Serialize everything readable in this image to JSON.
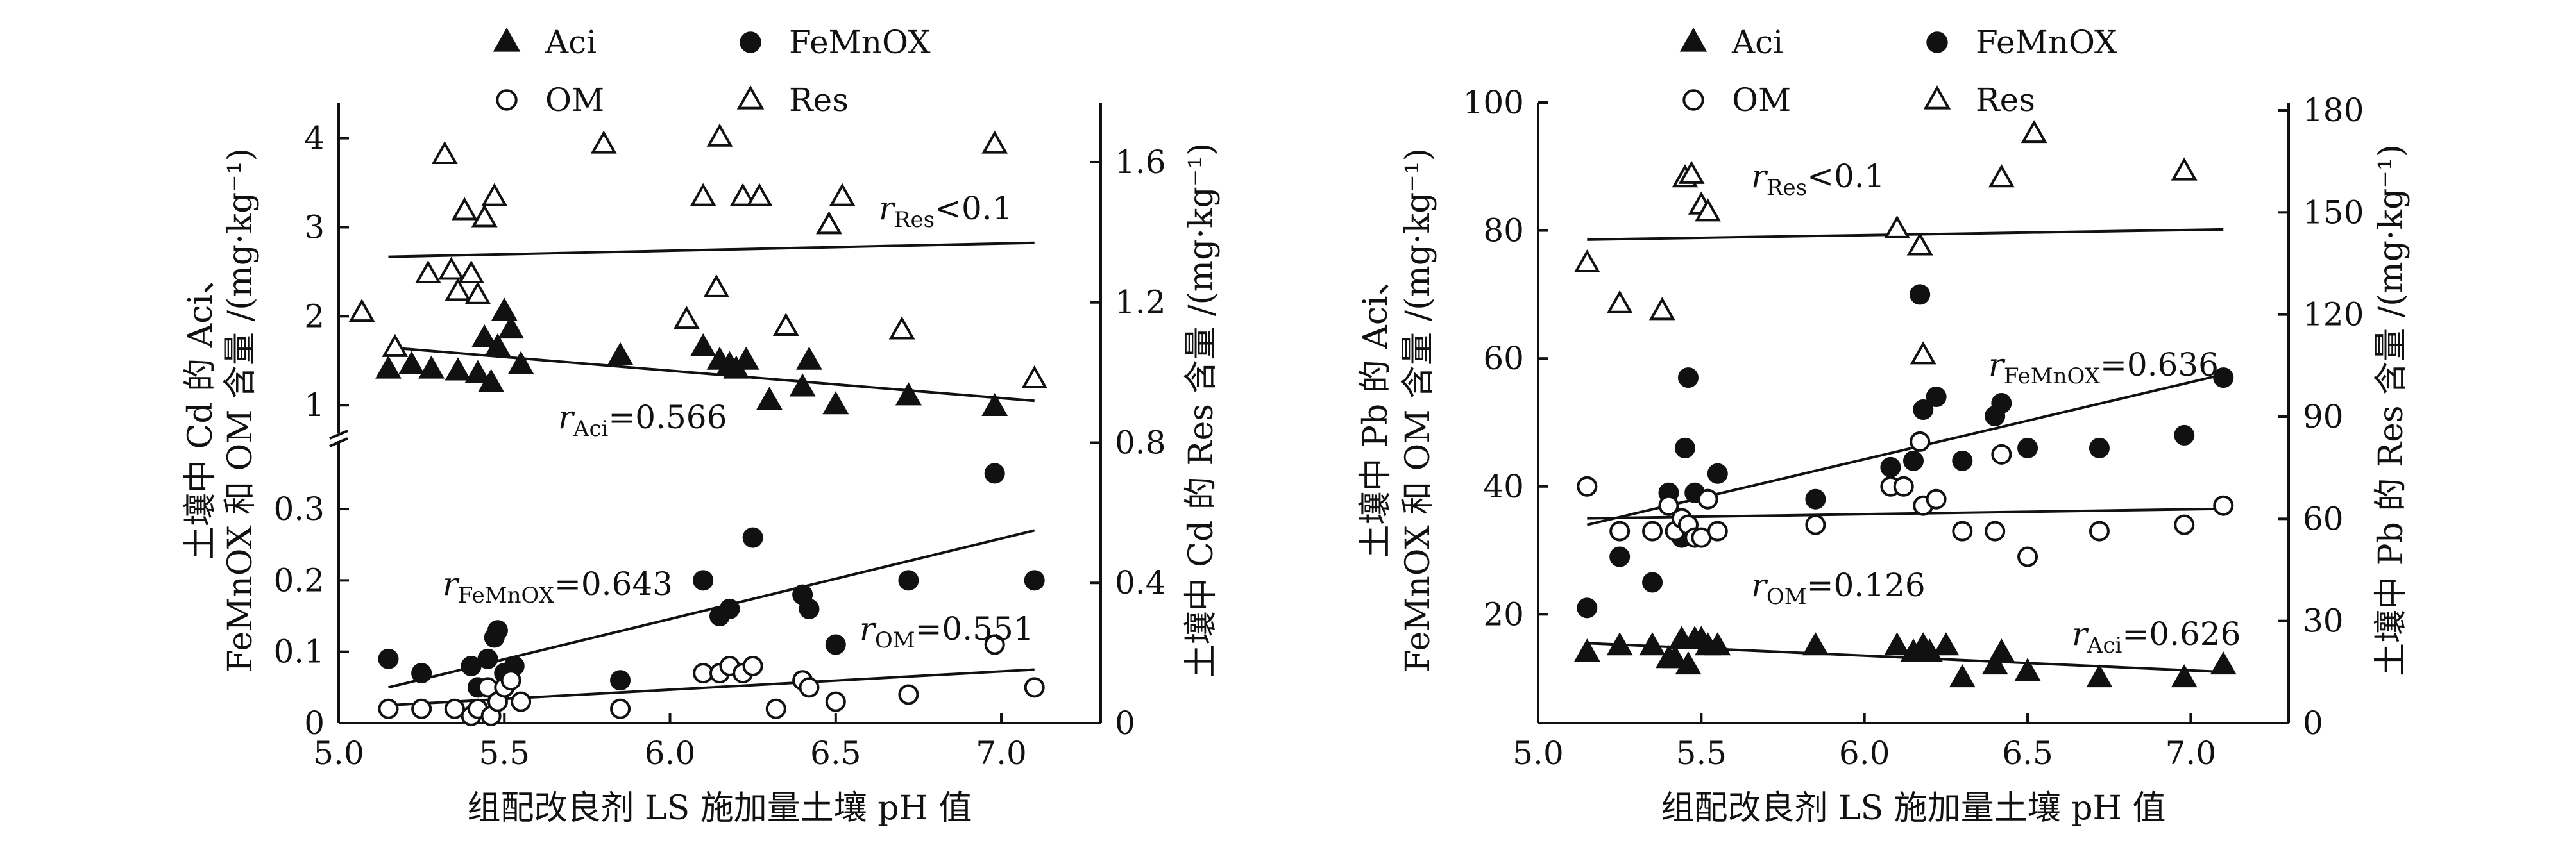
{
  "chart_data": [
    {
      "type": "scatter",
      "id": "cd",
      "title": "",
      "xlabel": "组配改良剂 LS 施加量土壤 pH 值",
      "ylabel_left_lines": [
        "土壤中 Cd 的 Aci、",
        "FeMnOX 和 OM 含量 /(mg·kg⁻¹)"
      ],
      "ylabel_right": "土壤中 Cd 的 Res 含量 /(mg·kg⁻¹)",
      "xlim": [
        5.0,
        7.3
      ],
      "xticks": [
        5.0,
        5.5,
        6.0,
        6.5,
        7.0
      ],
      "xtick_labels": [
        "5.0",
        "5.5",
        "6.0",
        "6.5",
        "7.0"
      ],
      "ylim_left_lower": [
        0,
        0.38
      ],
      "ylim_left_upper": [
        0.8,
        4.4
      ],
      "yticks_left_lower": [
        0,
        0.1,
        0.2,
        0.3
      ],
      "ytick_labels_left_lower": [
        "0",
        "0.1",
        "0.2",
        "0.3"
      ],
      "yticks_left_upper": [
        1,
        2,
        3,
        4
      ],
      "ytick_labels_left_upper": [
        "1",
        "2",
        "3",
        "4"
      ],
      "ylim_right": [
        0,
        1.77
      ],
      "yticks_right": [
        0,
        0.4,
        0.8,
        1.2,
        1.6
      ],
      "ytick_labels_right": [
        "0",
        "0.4",
        "0.8",
        "1.2",
        "1.6"
      ],
      "axis_break": true,
      "legend": [
        {
          "name": "Aci",
          "marker": "filled-triangle"
        },
        {
          "name": "FeMnOX",
          "marker": "filled-circle"
        },
        {
          "name": "OM",
          "marker": "open-circle"
        },
        {
          "name": "Res",
          "marker": "open-triangle"
        }
      ],
      "series": [
        {
          "name": "Aci",
          "axis": "left-upper",
          "marker": "filled-triangle",
          "x": [
            5.15,
            5.22,
            5.28,
            5.36,
            5.42,
            5.44,
            5.46,
            5.48,
            5.5,
            5.52,
            5.55,
            5.85,
            6.1,
            6.15,
            6.18,
            6.2,
            6.23,
            6.3,
            6.4,
            6.42,
            6.5,
            6.72,
            6.98
          ],
          "y": [
            1.4,
            1.45,
            1.4,
            1.38,
            1.35,
            1.75,
            1.25,
            1.65,
            2.05,
            1.85,
            1.45,
            1.55,
            1.65,
            1.5,
            1.45,
            1.4,
            1.5,
            1.05,
            1.2,
            1.5,
            1.0,
            1.1,
            0.98
          ],
          "fit": {
            "y_start": 1.65,
            "y_end": 1.05
          },
          "annotation": {
            "base": "r",
            "sub": "Aci",
            "text": "=0.566"
          }
        },
        {
          "name": "FeMnOX",
          "axis": "left-lower",
          "marker": "filled-circle",
          "x": [
            5.15,
            5.25,
            5.4,
            5.42,
            5.45,
            5.47,
            5.48,
            5.5,
            5.53,
            5.85,
            6.1,
            6.15,
            6.18,
            6.25,
            6.4,
            6.42,
            6.5,
            6.72,
            6.98,
            7.1
          ],
          "y": [
            0.09,
            0.07,
            0.08,
            0.05,
            0.09,
            0.12,
            0.13,
            0.07,
            0.08,
            0.06,
            0.2,
            0.15,
            0.16,
            0.26,
            0.18,
            0.16,
            0.11,
            0.2,
            0.35,
            0.2
          ],
          "fit": {
            "y_start": 0.05,
            "y_end": 0.27
          },
          "annotation": {
            "base": "r",
            "sub": "FeMnOX",
            "text": "=0.643"
          }
        },
        {
          "name": "OM",
          "axis": "left-lower",
          "marker": "open-circle",
          "x": [
            5.15,
            5.25,
            5.35,
            5.4,
            5.42,
            5.45,
            5.46,
            5.48,
            5.5,
            5.52,
            5.55,
            5.85,
            6.1,
            6.15,
            6.18,
            6.22,
            6.25,
            6.32,
            6.4,
            6.42,
            6.5,
            6.72,
            6.98,
            7.1
          ],
          "y": [
            0.02,
            0.02,
            0.02,
            0.01,
            0.02,
            0.05,
            0.01,
            0.03,
            0.05,
            0.06,
            0.03,
            0.02,
            0.07,
            0.07,
            0.08,
            0.07,
            0.08,
            0.02,
            0.06,
            0.05,
            0.03,
            0.04,
            0.11,
            0.05
          ],
          "fit": {
            "y_start": 0.025,
            "y_end": 0.075
          },
          "annotation": {
            "base": "r",
            "sub": "OM",
            "text": "=0.551"
          }
        },
        {
          "name": "Res",
          "axis": "right",
          "marker": "open-triangle",
          "x": [
            5.07,
            5.17,
            5.27,
            5.32,
            5.34,
            5.36,
            5.38,
            5.4,
            5.42,
            5.44,
            5.47,
            5.8,
            6.05,
            6.1,
            6.14,
            6.15,
            6.22,
            6.27,
            6.35,
            6.48,
            6.52,
            6.7,
            6.98,
            7.1
          ],
          "y": [
            1.17,
            1.07,
            1.28,
            1.62,
            1.29,
            1.23,
            1.46,
            1.28,
            1.22,
            1.44,
            1.5,
            1.65,
            1.15,
            1.5,
            1.24,
            1.67,
            1.5,
            1.5,
            1.13,
            1.42,
            1.5,
            1.12,
            1.65,
            0.98
          ],
          "fit": {
            "y_start": 1.33,
            "y_end": 1.37
          },
          "annotation": {
            "base": "r",
            "sub": "Res",
            "text": "<0.1"
          }
        }
      ]
    },
    {
      "type": "scatter",
      "id": "pb",
      "title": "",
      "xlabel": "组配改良剂 LS 施加量土壤 pH 值",
      "ylabel_left_lines": [
        "土壤中 Pb 的 Aci、",
        "FeMnOX 和 OM 含量 /(mg·kg⁻¹)"
      ],
      "ylabel_right": "土壤中 Pb 的 Res 含量 /(mg·kg⁻¹)",
      "xlim": [
        5.0,
        7.3
      ],
      "xticks": [
        5.0,
        5.5,
        6.0,
        6.5,
        7.0
      ],
      "xtick_labels": [
        "5.0",
        "5.5",
        "6.0",
        "6.5",
        "7.0"
      ],
      "ylim_left": [
        3,
        100
      ],
      "yticks_left": [
        20,
        40,
        60,
        80,
        100
      ],
      "ytick_labels_left": [
        "20",
        "40",
        "60",
        "80",
        "100"
      ],
      "ylim_right": [
        0,
        180
      ],
      "yticks_right": [
        0,
        30,
        60,
        90,
        120,
        150,
        180
      ],
      "ytick_labels_right": [
        "0",
        "30",
        "60",
        "90",
        "120",
        "150",
        "180"
      ],
      "legend": [
        {
          "name": "Aci",
          "marker": "filled-triangle"
        },
        {
          "name": "FeMnOX",
          "marker": "filled-circle"
        },
        {
          "name": "OM",
          "marker": "open-circle"
        },
        {
          "name": "Res",
          "marker": "open-triangle"
        }
      ],
      "series": [
        {
          "name": "Aci",
          "axis": "left",
          "marker": "filled-triangle",
          "x": [
            5.15,
            5.25,
            5.35,
            5.4,
            5.42,
            5.44,
            5.46,
            5.48,
            5.5,
            5.52,
            5.55,
            5.85,
            6.1,
            6.15,
            6.18,
            6.2,
            6.25,
            6.3,
            6.4,
            6.42,
            6.5,
            6.72,
            6.98,
            7.1
          ],
          "y": [
            14,
            15,
            15,
            13,
            13,
            16,
            12,
            16,
            16,
            15,
            15,
            15,
            15,
            14,
            15,
            14,
            15,
            10,
            12,
            14,
            11,
            10,
            10,
            12
          ],
          "fit": {
            "y_start": 15.5,
            "y_end": 11
          },
          "annotation": {
            "base": "r",
            "sub": "Aci",
            "text": "=0.626"
          }
        },
        {
          "name": "FeMnOX",
          "axis": "left",
          "marker": "filled-circle",
          "x": [
            5.15,
            5.25,
            5.35,
            5.4,
            5.44,
            5.45,
            5.46,
            5.48,
            5.52,
            5.55,
            5.85,
            6.08,
            6.15,
            6.17,
            6.18,
            6.22,
            6.3,
            6.4,
            6.42,
            6.5,
            6.72,
            6.98,
            7.1
          ],
          "y": [
            21,
            29,
            25,
            39,
            32,
            46,
            57,
            39,
            38,
            42,
            38,
            43,
            44,
            70,
            52,
            54,
            44,
            51,
            53,
            46,
            46,
            48,
            57
          ],
          "fit": {
            "y_start": 34,
            "y_end": 57.5
          },
          "annotation": {
            "base": "r",
            "sub": "FeMnOX",
            "text": "=0.636"
          }
        },
        {
          "name": "OM",
          "axis": "left",
          "marker": "open-circle",
          "x": [
            5.15,
            5.25,
            5.35,
            5.4,
            5.42,
            5.44,
            5.46,
            5.48,
            5.5,
            5.52,
            5.55,
            5.85,
            6.08,
            6.12,
            6.17,
            6.18,
            6.22,
            6.3,
            6.4,
            6.42,
            6.5,
            6.72,
            6.98,
            7.1
          ],
          "y": [
            40,
            33,
            33,
            37,
            33,
            35,
            34,
            32,
            32,
            38,
            33,
            34,
            40,
            40,
            47,
            37,
            38,
            33,
            33,
            45,
            29,
            33,
            34,
            37
          ],
          "fit": {
            "y_start": 35,
            "y_end": 36.5
          },
          "annotation": {
            "base": "r",
            "sub": "OM",
            "text": "=0.126"
          }
        },
        {
          "name": "Res",
          "axis": "right",
          "marker": "open-triangle",
          "x": [
            5.15,
            5.25,
            5.38,
            5.45,
            5.47,
            5.5,
            5.52,
            6.1,
            6.17,
            6.18,
            6.42,
            6.52,
            6.98
          ],
          "y": [
            135,
            123,
            121,
            160,
            161,
            152,
            150,
            145,
            140,
            108,
            160,
            173,
            162
          ],
          "fit": {
            "y_start": 142,
            "y_end": 145
          },
          "annotation": {
            "base": "r",
            "sub": "Res",
            "text": "<0.1"
          }
        }
      ]
    }
  ]
}
